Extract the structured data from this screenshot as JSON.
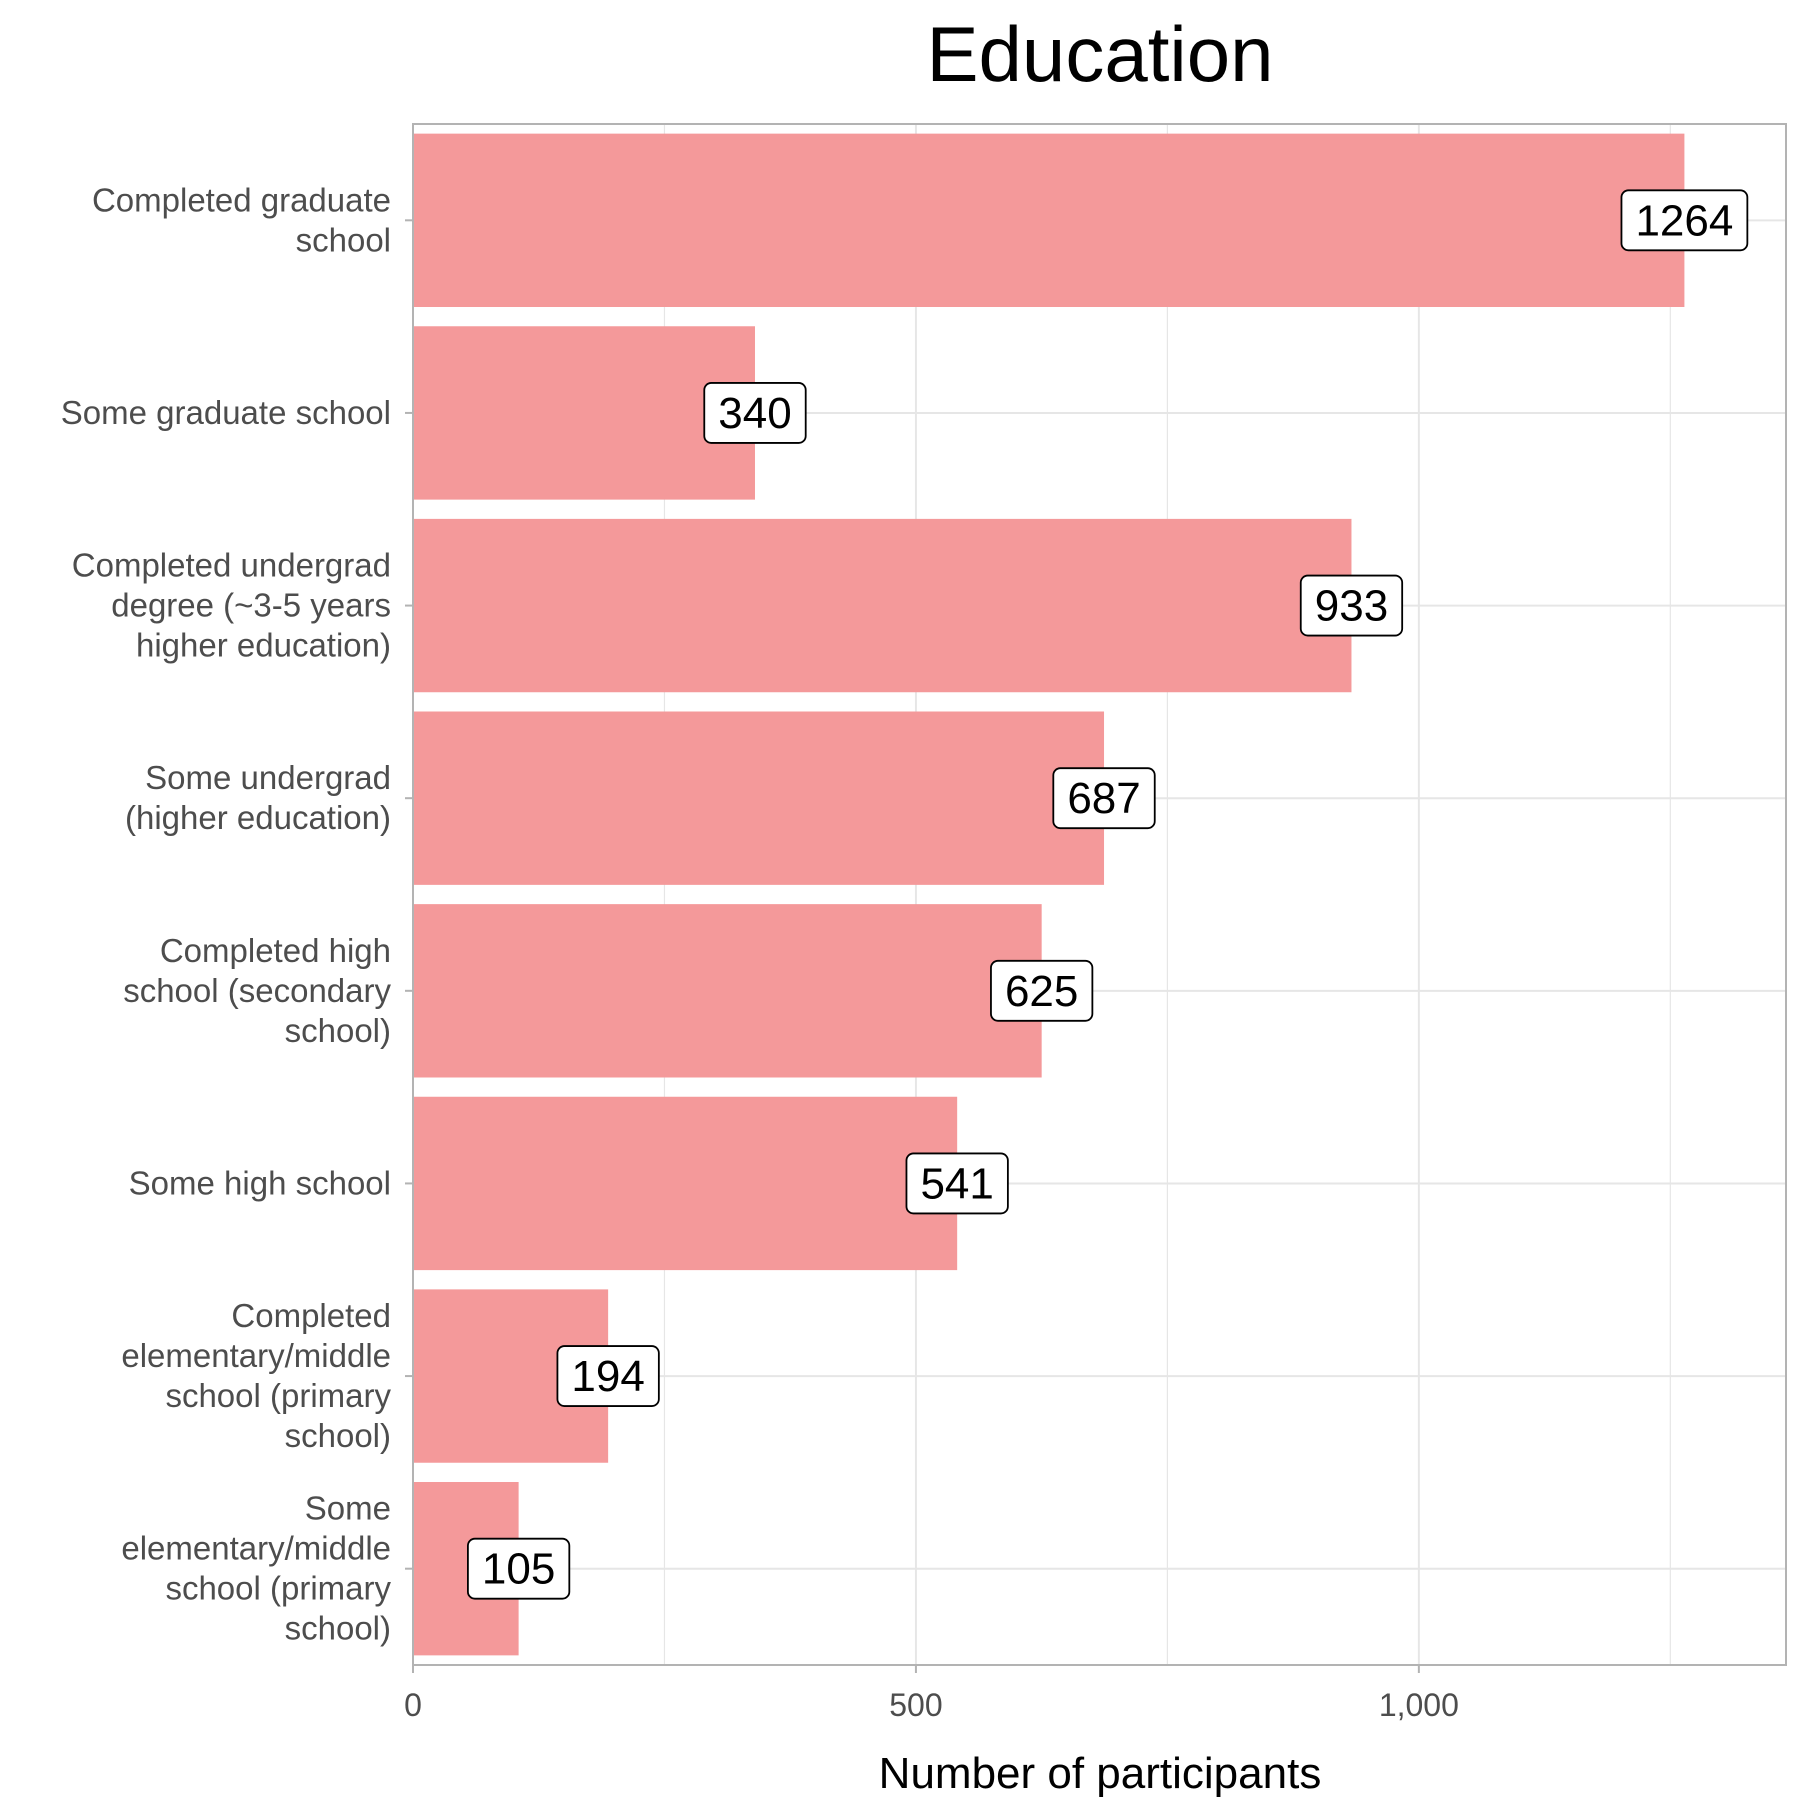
{
  "chart_data": {
    "type": "bar",
    "orientation": "horizontal",
    "title": "Education",
    "xlabel": "Number of participants",
    "ylabel": "",
    "categories": [
      "Completed graduate school",
      "Some graduate school",
      "Completed undergrad degree (~3-5 years higher education)",
      "Some undergrad (higher education)",
      "Completed high school (secondary school)",
      "Some high school",
      "Completed elementary/middle school (primary school)",
      "Some elementary/middle school (primary school)"
    ],
    "category_label_lines": [
      [
        "Completed graduate",
        "school"
      ],
      [
        "Some graduate school"
      ],
      [
        "Completed undergrad",
        "degree (~3-5 years",
        "higher education)"
      ],
      [
        "Some undergrad",
        "(higher education)"
      ],
      [
        "Completed high",
        "school (secondary",
        "school)"
      ],
      [
        "Some high school"
      ],
      [
        "Completed",
        "elementary/middle",
        "school (primary",
        "school)"
      ],
      [
        "Some",
        "elementary/middle",
        "school (primary",
        "school)"
      ]
    ],
    "values": [
      1264,
      340,
      933,
      687,
      625,
      541,
      194,
      105
    ],
    "xlim": [
      0,
      1365
    ],
    "x_ticks": [
      0,
      500,
      1000
    ],
    "x_tick_labels": [
      "0",
      "500",
      "1,000"
    ],
    "grid": true,
    "data_labels": true,
    "legend": "none",
    "bar_color": "#f4999a",
    "grid_color": "#e6e6e6",
    "panel_border_color": "#b3b3b3"
  }
}
